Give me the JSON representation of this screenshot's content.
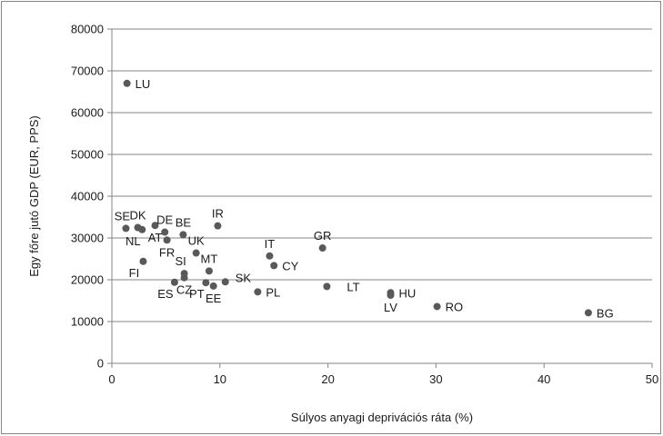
{
  "chart_data": {
    "type": "scatter",
    "xlabel": "Súlyos anyagi deprivációs ráta (%)",
    "ylabel": "Egy főre jutó GDP (EUR, PPS)",
    "xlim": [
      0,
      50
    ],
    "ylim": [
      0,
      80000
    ],
    "xticks": [
      "0",
      "10",
      "20",
      "30",
      "40",
      "50"
    ],
    "yticks": [
      "0",
      "10000",
      "20000",
      "30000",
      "40000",
      "50000",
      "60000",
      "70000",
      "80000"
    ],
    "grid": "horizontal",
    "marker_color": "#595959",
    "points": [
      {
        "label": "LU",
        "x": 1.4,
        "y": 67000,
        "pos": "right"
      },
      {
        "label": "SE",
        "x": 1.3,
        "y": 32300,
        "pos": "up-left"
      },
      {
        "label": "DK",
        "x": 2.4,
        "y": 32500,
        "pos": "up"
      },
      {
        "label": "NL",
        "x": 2.8,
        "y": 32000,
        "pos": "down-left"
      },
      {
        "label": "AT",
        "x": 4.0,
        "y": 33000,
        "pos": "down"
      },
      {
        "label": "DE",
        "x": 4.9,
        "y": 31400,
        "pos": "up"
      },
      {
        "label": "BE",
        "x": 6.6,
        "y": 30800,
        "pos": "up"
      },
      {
        "label": "FR",
        "x": 5.1,
        "y": 29500,
        "pos": "down"
      },
      {
        "label": "IR",
        "x": 9.8,
        "y": 32900,
        "pos": "up"
      },
      {
        "label": "UK",
        "x": 7.8,
        "y": 26400,
        "pos": "up"
      },
      {
        "label": "FI",
        "x": 2.9,
        "y": 24400,
        "pos": "down-left"
      },
      {
        "label": "SI",
        "x": 6.7,
        "y": 21500,
        "pos": "up-left"
      },
      {
        "label": "MT",
        "x": 9.0,
        "y": 22100,
        "pos": "up"
      },
      {
        "label": "ES",
        "x": 5.8,
        "y": 19400,
        "pos": "down-left"
      },
      {
        "label": "CZ",
        "x": 6.7,
        "y": 20500,
        "pos": "down"
      },
      {
        "label": "PT",
        "x": 8.7,
        "y": 19300,
        "pos": "down-left"
      },
      {
        "label": "EE",
        "x": 9.4,
        "y": 18500,
        "pos": "down"
      },
      {
        "label": "SK",
        "x": 10.5,
        "y": 19500,
        "pos": "right-up"
      },
      {
        "label": "PL",
        "x": 13.5,
        "y": 17100,
        "pos": "right"
      },
      {
        "label": "IT",
        "x": 14.6,
        "y": 25700,
        "pos": "up"
      },
      {
        "label": "CY",
        "x": 15.0,
        "y": 23400,
        "pos": "right"
      },
      {
        "label": "GR",
        "x": 19.5,
        "y": 27600,
        "pos": "up"
      },
      {
        "label": "LT",
        "x": 19.9,
        "y": 18400,
        "pos": "right-far"
      },
      {
        "label": "HU",
        "x": 25.8,
        "y": 16900,
        "pos": "right"
      },
      {
        "label": "LV",
        "x": 25.8,
        "y": 16300,
        "pos": "down"
      },
      {
        "label": "RO",
        "x": 30.1,
        "y": 13600,
        "pos": "right"
      },
      {
        "label": "BG",
        "x": 44.1,
        "y": 12100,
        "pos": "right"
      }
    ]
  }
}
